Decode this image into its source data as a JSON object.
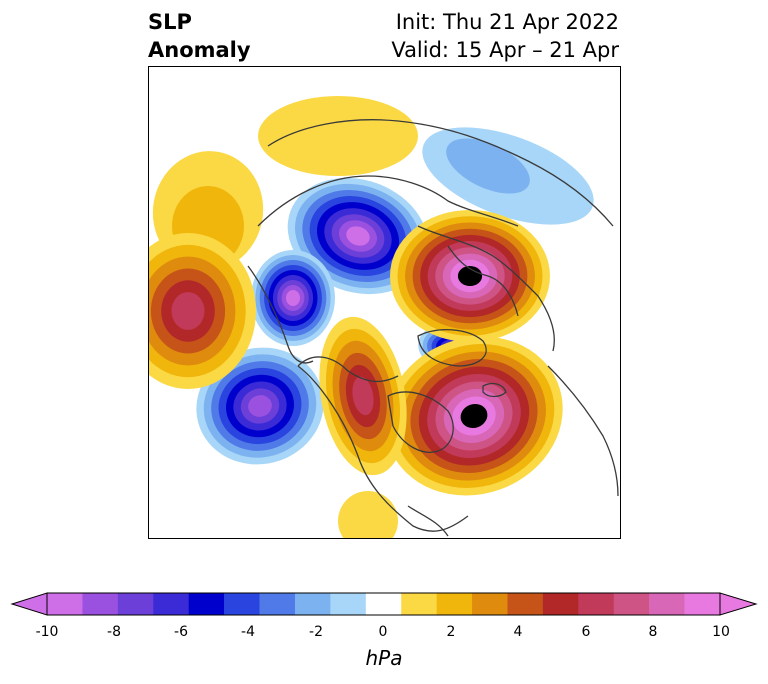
{
  "title": {
    "left_line1": "SLP",
    "left_line2": "Anomaly",
    "right_line1": "Init: Thu 21 Apr 2022",
    "right_line2": "Valid: 15 Apr – 21 Apr"
  },
  "colorbar": {
    "unit": "hPa",
    "ticks": [
      "-10",
      "-8",
      "-6",
      "-4",
      "-2",
      "0",
      "2",
      "4",
      "6",
      "8",
      "10"
    ],
    "colors": [
      "#cf6fe8",
      "#9b51df",
      "#6b3fd8",
      "#3a2bd6",
      "#0000cc",
      "#2a44e0",
      "#4f7ae8",
      "#7cb2f0",
      "#a8d6f8",
      "#ffffff",
      "#fbd944",
      "#f0b60b",
      "#df8b0e",
      "#c65418",
      "#b22828",
      "#c23a5a",
      "#cf5486",
      "#d967b8",
      "#e879e0"
    ],
    "extend": "both",
    "range": [
      -10,
      10
    ],
    "step": 1
  },
  "map": {
    "projection": "polar stereographic (north pole)",
    "anomalies": [
      {
        "name": "negative-center-north-pacific",
        "value": -8
      },
      {
        "name": "negative-center-east-siberia",
        "value": -9
      },
      {
        "name": "negative-center-kara-sea",
        "value": -9
      },
      {
        "name": "negative-center-baffin",
        "value": -7
      },
      {
        "name": "positive-center-north-atlantic",
        "value": 10
      },
      {
        "name": "positive-center-scandinavia",
        "value": 10
      },
      {
        "name": "positive-center-west-pacific",
        "value": 6
      },
      {
        "name": "positive-center-alaska",
        "value": 6
      }
    ]
  }
}
